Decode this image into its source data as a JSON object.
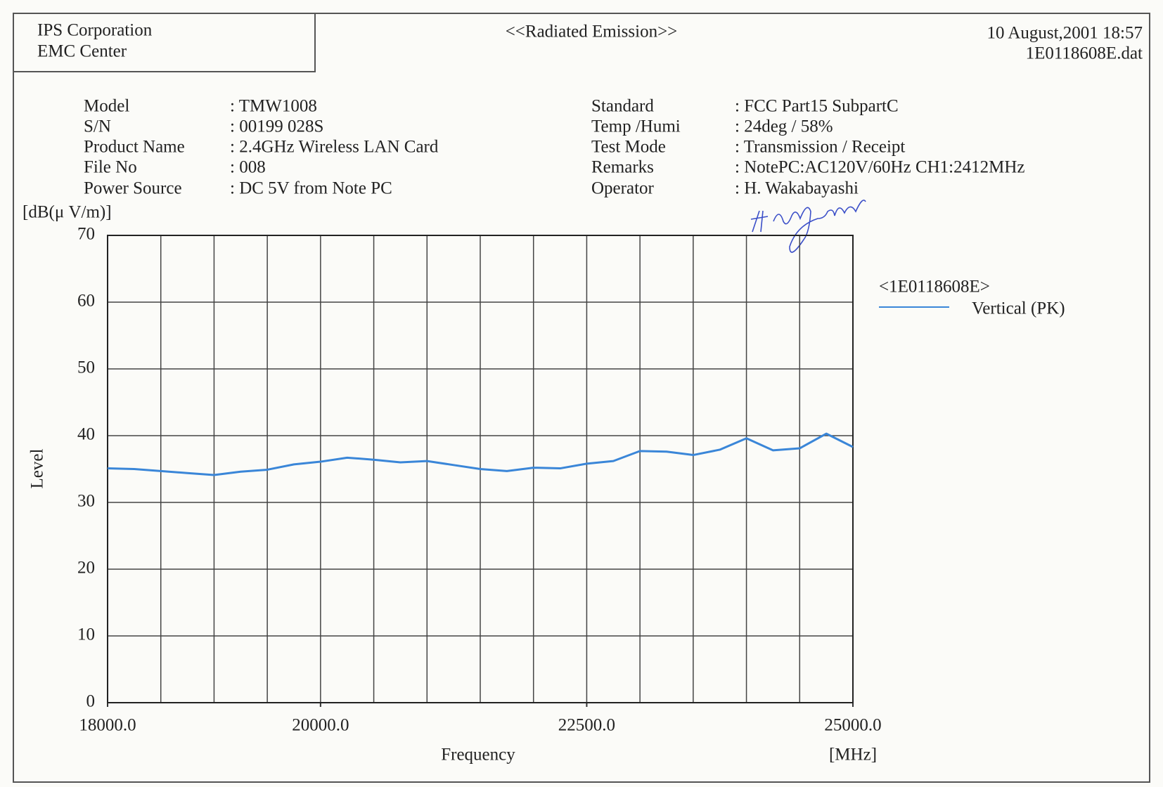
{
  "header": {
    "company": [
      "IPS Corporation",
      "EMC Center"
    ],
    "title": "<<Radiated Emission>>",
    "date": "10 August,2001 18:57",
    "file": "1E0118608E.dat"
  },
  "info_left": [
    {
      "label": "Model",
      "value": ": TMW1008"
    },
    {
      "label": "S/N",
      "value": ": 00199 028S"
    },
    {
      "label": "Product Name",
      "value": ": 2.4GHz Wireless LAN Card"
    },
    {
      "label": "File No",
      "value": ": 008"
    },
    {
      "label": "Power Source",
      "value": ": DC 5V from Note PC"
    }
  ],
  "info_right": [
    {
      "label": "Standard",
      "value": ": FCC Part15 SubpartC"
    },
    {
      "label": "Temp /Humi",
      "value": ": 24deg / 58%"
    },
    {
      "label": "Test Mode",
      "value": ": Transmission / Receipt"
    },
    {
      "label": "Remarks",
      "value": ": NotePC:AC120V/60Hz CH1:2412MHz"
    },
    {
      "label": "Operator",
      "value": ": H. Wakabayashi"
    }
  ],
  "chart_data": {
    "type": "line",
    "y_unit": "[dB(μ V/m)]",
    "y_label": "Level",
    "x_label": "Frequency",
    "x_unit": "[MHz]",
    "legend_title": "<1E0118608E>",
    "x": [
      18000,
      18250,
      18500,
      18750,
      19000,
      19250,
      19500,
      19750,
      20000,
      20250,
      20500,
      20750,
      21000,
      21250,
      21500,
      21750,
      22000,
      22250,
      22500,
      22750,
      23000,
      23250,
      23500,
      23750,
      24000,
      24250,
      24500,
      24750,
      25000
    ],
    "series": [
      {
        "name": "Vertical (PK)",
        "color": "#3a86d8",
        "values": [
          35.1,
          35.0,
          34.7,
          34.4,
          34.1,
          34.6,
          34.9,
          35.7,
          36.1,
          36.7,
          36.4,
          36.0,
          36.2,
          35.6,
          35.0,
          34.7,
          35.2,
          35.1,
          35.8,
          36.2,
          37.7,
          37.6,
          37.1,
          37.9,
          39.6,
          37.8,
          38.1,
          40.3,
          38.3
        ]
      }
    ],
    "xlim": [
      18000,
      25000
    ],
    "xticks": [
      {
        "value": 18000,
        "label": "18000.0"
      },
      {
        "value": 20000,
        "label": "20000.0"
      },
      {
        "value": 22500,
        "label": "22500.0"
      },
      {
        "value": 25000,
        "label": "25000.0"
      }
    ],
    "xgrid": [
      18000,
      18500,
      19000,
      19500,
      20000,
      20500,
      21000,
      21500,
      22000,
      22500,
      23000,
      23500,
      24000,
      24500,
      25000
    ],
    "ylim": [
      0,
      70
    ],
    "yticks": [
      0,
      10,
      20,
      30,
      40,
      50,
      60,
      70
    ],
    "grid": true
  }
}
